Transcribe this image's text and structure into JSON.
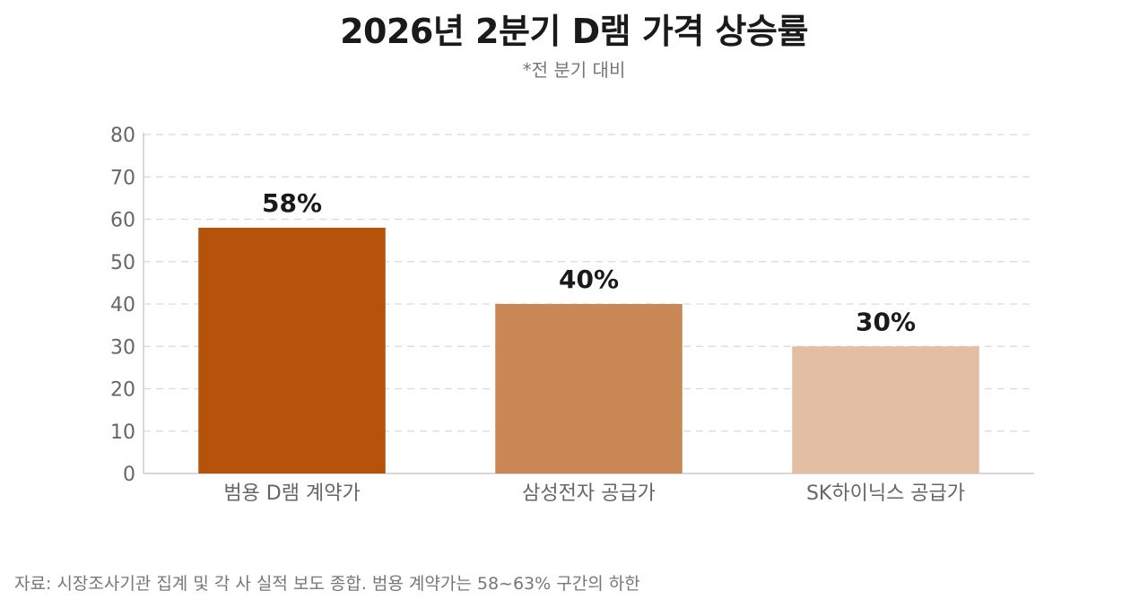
{
  "title": "2026년 2분기 D램 가격 상승률",
  "subtitle": "*전 분기 대비",
  "source": "자료: 시장조사기관 집계 및 각 사 실적 보도 종합. 범용 계약가는 58~63% 구간의 하한",
  "chart_data": {
    "type": "bar",
    "categories": [
      "범용 D램 계약가",
      "삼성전자 공급가",
      "SK하이닉스 공급가"
    ],
    "values": [
      58,
      40,
      30
    ],
    "value_labels": [
      "58%",
      "40%",
      "30%"
    ],
    "colors": [
      "#b5530b",
      "#c98755",
      "#e3bea2"
    ],
    "yticks": [
      "0",
      "10",
      "20",
      "30",
      "40",
      "50",
      "60",
      "70",
      "80"
    ],
    "ylim": [
      0,
      80
    ],
    "grid": true,
    "xlabel": "",
    "ylabel": ""
  }
}
